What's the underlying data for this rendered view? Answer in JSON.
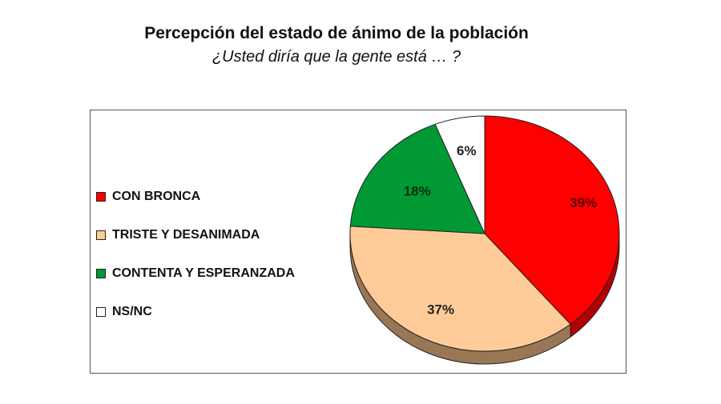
{
  "chart_data": {
    "type": "pie",
    "title": "Percepción del estado de ánimo de la población",
    "subtitle": "¿Usted diría que la gente está … ?",
    "legend_position": "left",
    "categories": [
      "CON BRONCA",
      "TRISTE Y DESANIMADA",
      "CONTENTA Y ESPERANZADA",
      "NS/NC"
    ],
    "values": [
      39,
      37,
      18,
      6
    ],
    "labels": [
      "39%",
      "37%",
      "18%",
      "6%"
    ],
    "colors": [
      "#ff0000",
      "#ffcc99",
      "#009933",
      "#ffffff"
    ],
    "side_colors": [
      "#b30000",
      "#997755",
      "#006622",
      "#bbbbbb"
    ]
  }
}
